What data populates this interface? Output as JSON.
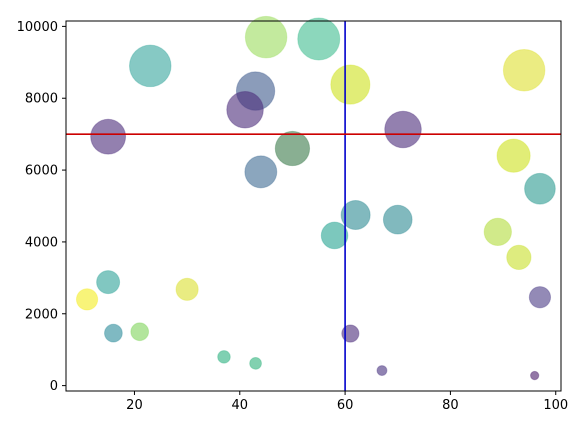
{
  "chart_data": {
    "type": "scatter",
    "title": "",
    "xlabel": "",
    "ylabel": "",
    "xlim": [
      7,
      101
    ],
    "ylim": [
      -150,
      10150
    ],
    "x_ticks": [
      {
        "value": 20,
        "label": "20"
      },
      {
        "value": 40,
        "label": "40"
      },
      {
        "value": 60,
        "label": "60"
      },
      {
        "value": 80,
        "label": "80"
      },
      {
        "value": 100,
        "label": "100"
      }
    ],
    "y_ticks": [
      {
        "value": 0,
        "label": "0"
      },
      {
        "value": 2000,
        "label": "2000"
      },
      {
        "value": 4000,
        "label": "4000"
      },
      {
        "value": 6000,
        "label": "6000"
      },
      {
        "value": 8000,
        "label": "8000"
      },
      {
        "value": 10000,
        "label": "10000"
      }
    ],
    "reference_lines": [
      {
        "orientation": "vertical",
        "value": 60,
        "color": "#0000cc"
      },
      {
        "orientation": "horizontal",
        "value": 7000,
        "color": "#cc0000"
      }
    ],
    "marker_alpha": 0.6,
    "colormap": "viridis",
    "points": [
      {
        "x": 45,
        "y": 9700,
        "size": 880,
        "color": "#9bdc5e"
      },
      {
        "x": 55,
        "y": 9650,
        "size": 900,
        "color": "#3fbc8f"
      },
      {
        "x": 23,
        "y": 8900,
        "size": 880,
        "color": "#35a59c"
      },
      {
        "x": 94,
        "y": 8780,
        "size": 880,
        "color": "#dde02e"
      },
      {
        "x": 61,
        "y": 8380,
        "size": 780,
        "color": "#cde11d"
      },
      {
        "x": 43,
        "y": 8200,
        "size": 750,
        "color": "#3d5a8c"
      },
      {
        "x": 41,
        "y": 7680,
        "size": 680,
        "color": "#4b2c7a"
      },
      {
        "x": 71,
        "y": 7130,
        "size": 680,
        "color": "#4b2c7a"
      },
      {
        "x": 15,
        "y": 6930,
        "size": 620,
        "color": "#4b2c7a"
      },
      {
        "x": 50,
        "y": 6600,
        "size": 600,
        "color": "#3a7a4a"
      },
      {
        "x": 92,
        "y": 6400,
        "size": 560,
        "color": "#cde11d"
      },
      {
        "x": 44,
        "y": 5950,
        "size": 520,
        "color": "#3d6a92"
      },
      {
        "x": 97,
        "y": 5480,
        "size": 480,
        "color": "#2a9a90"
      },
      {
        "x": 62,
        "y": 4750,
        "size": 430,
        "color": "#2d8a93"
      },
      {
        "x": 70,
        "y": 4620,
        "size": 420,
        "color": "#2d8a93"
      },
      {
        "x": 89,
        "y": 4280,
        "size": 380,
        "color": "#b2dc3c"
      },
      {
        "x": 58,
        "y": 4180,
        "size": 360,
        "color": "#25a391"
      },
      {
        "x": 93,
        "y": 3570,
        "size": 300,
        "color": "#c8e02a"
      },
      {
        "x": 15,
        "y": 2880,
        "size": 270,
        "color": "#2da298"
      },
      {
        "x": 30,
        "y": 2680,
        "size": 250,
        "color": "#dbe02e"
      },
      {
        "x": 97,
        "y": 2460,
        "size": 230,
        "color": "#4b3c86"
      },
      {
        "x": 11,
        "y": 2400,
        "size": 230,
        "color": "#f3ec20"
      },
      {
        "x": 21,
        "y": 1500,
        "size": 160,
        "color": "#7ed35a"
      },
      {
        "x": 16,
        "y": 1460,
        "size": 160,
        "color": "#2a8a99"
      },
      {
        "x": 61,
        "y": 1450,
        "size": 150,
        "color": "#4b2c7a"
      },
      {
        "x": 37,
        "y": 800,
        "size": 80,
        "color": "#2ab07f"
      },
      {
        "x": 43,
        "y": 620,
        "size": 70,
        "color": "#2eb37b"
      },
      {
        "x": 67,
        "y": 420,
        "size": 50,
        "color": "#46307e"
      },
      {
        "x": 96,
        "y": 280,
        "size": 35,
        "color": "#4b1c6b"
      }
    ]
  }
}
